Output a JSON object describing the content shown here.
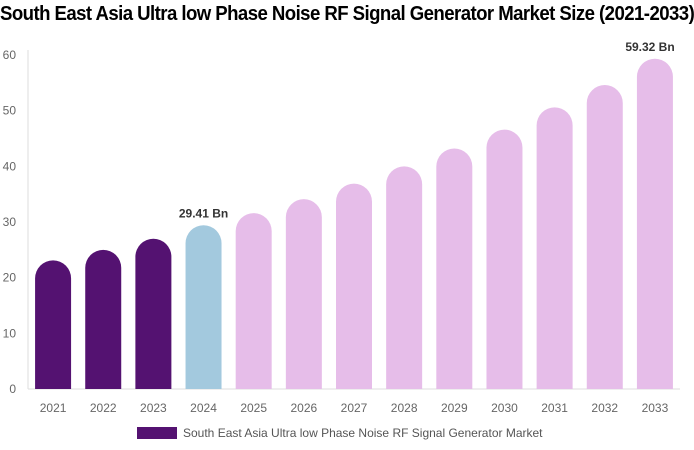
{
  "chart_data": {
    "type": "bar",
    "title": "South East Asia Ultra low Phase Noise RF Signal Generator Market Size (2021-2033)",
    "categories": [
      "2021",
      "2022",
      "2023",
      "2024",
      "2025",
      "2026",
      "2027",
      "2028",
      "2029",
      "2030",
      "2031",
      "2032",
      "2033"
    ],
    "series": [
      {
        "name": "South East Asia Ultra low Phase Noise RF Signal Generator Market",
        "values": [
          23.1,
          25.0,
          27.0,
          29.41,
          31.6,
          34.1,
          36.9,
          40.0,
          43.2,
          46.6,
          50.6,
          54.6,
          59.32
        ]
      }
    ],
    "data_labels": {
      "2024": "29.41 Bn",
      "2033": "59.32 Bn"
    },
    "ylim": [
      0,
      60
    ],
    "yticks": [
      0,
      10,
      20,
      30,
      40,
      50,
      60
    ],
    "grid": false,
    "legend_position": "bottom",
    "colors": {
      "historical": "#541271",
      "current": "#a3c9de",
      "forecast": "#e6bde9"
    }
  }
}
